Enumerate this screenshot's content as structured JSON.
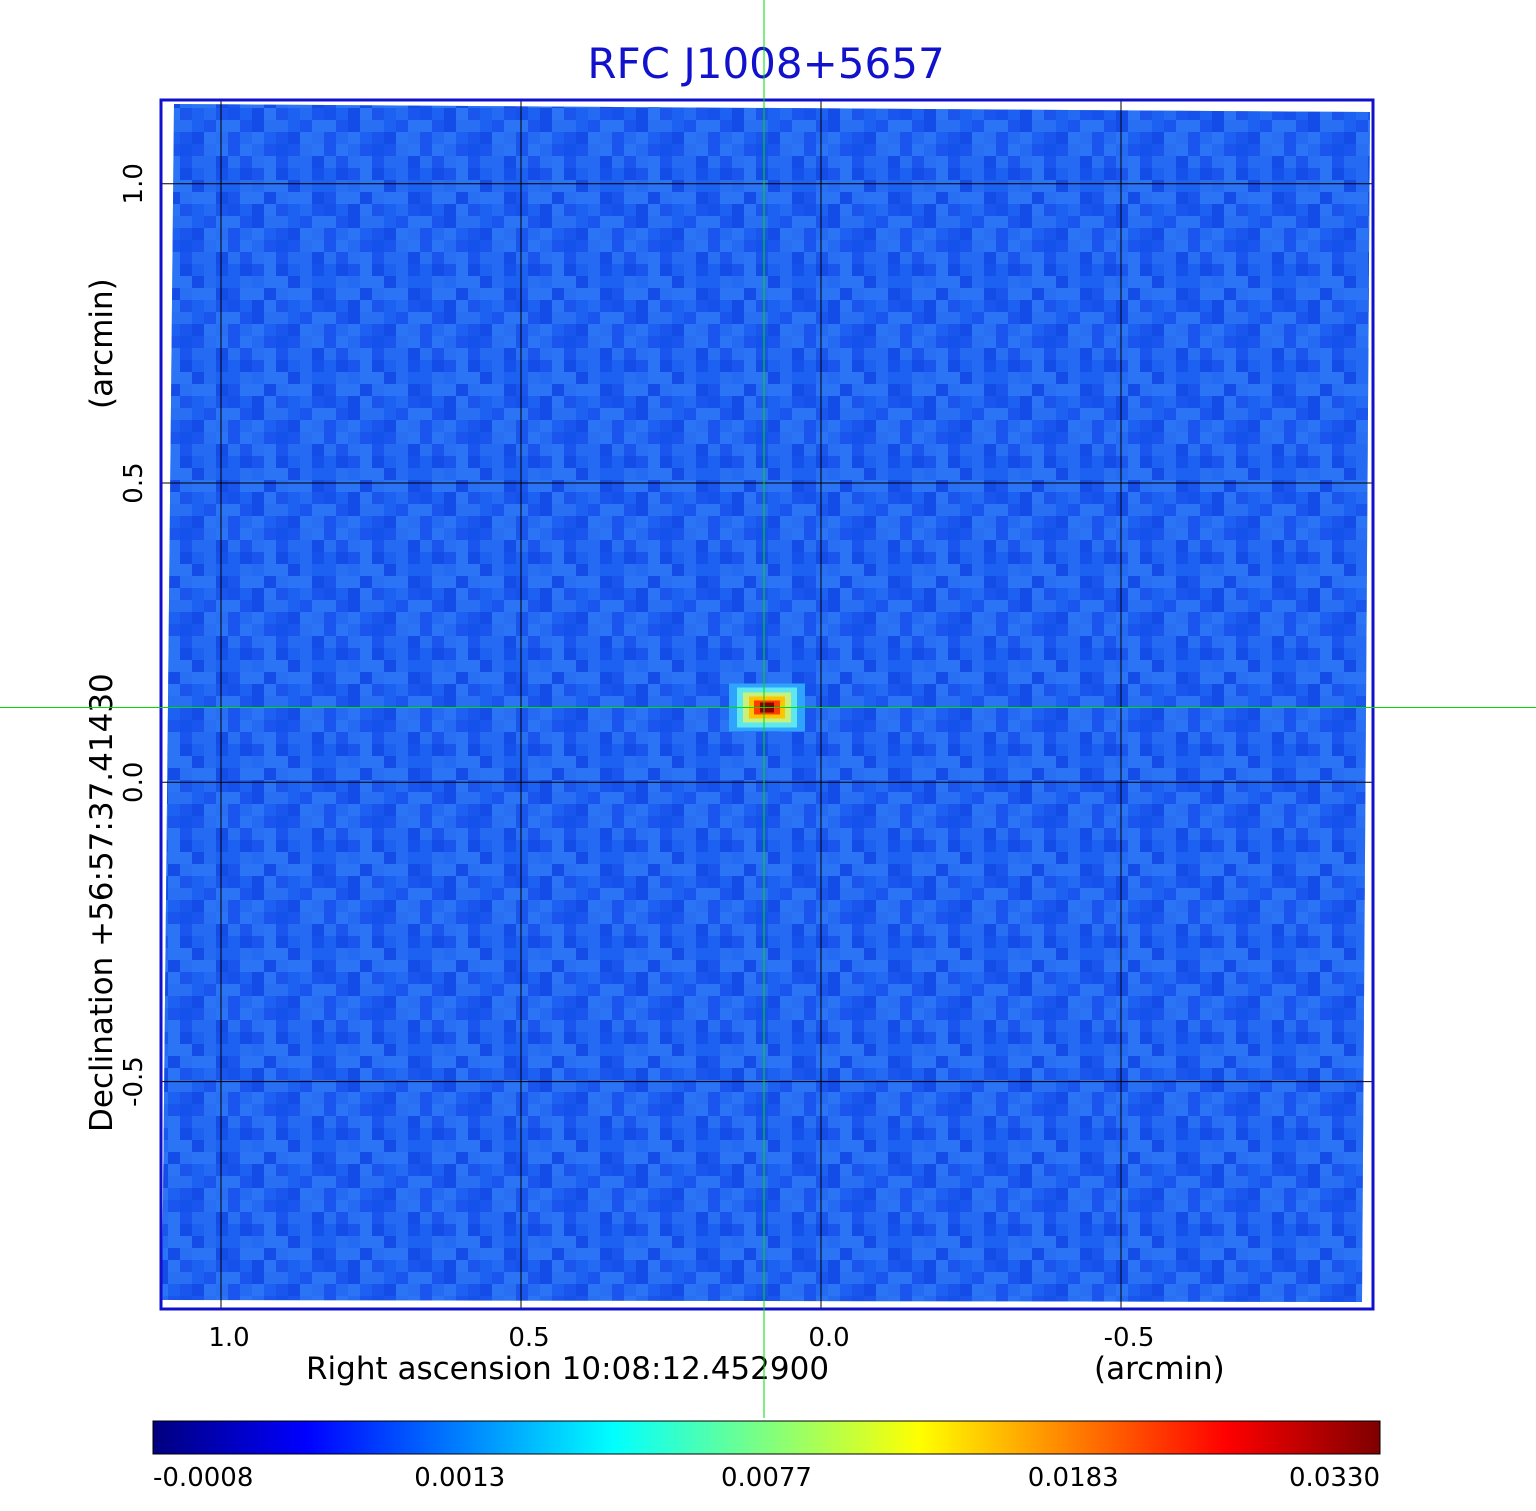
{
  "chart_data": {
    "type": "heatmap",
    "title": "RFC J1008+5657",
    "xlabel": "Right ascension  10:08:12.452900",
    "xunit": "(arcmin)",
    "ylabel": "Declination  +56:57:37.41430",
    "yunit": "(arcmin)",
    "xlim": [
      1.1,
      -0.92
    ],
    "ylim": [
      -0.88,
      1.14
    ],
    "xticks": [
      1.0,
      0.5,
      0.0,
      -0.5
    ],
    "xtick_labels": [
      "1.0",
      "0.5",
      "0.0",
      "-0.5"
    ],
    "yticks": [
      1.0,
      0.5,
      0.0,
      -0.5
    ],
    "ytick_labels": [
      "1.0",
      "0.5",
      "0.0",
      "-0.5"
    ],
    "grid": true,
    "source": {
      "x": 0.09,
      "y": 0.125,
      "peak": 0.033
    },
    "crosshair": {
      "x": 0.095,
      "y": 0.125
    },
    "colorbar": {
      "position": "bottom",
      "tick_values": [
        -0.0008,
        0.0013,
        0.0077,
        0.0183,
        0.033
      ],
      "tick_labels": [
        "-0.0008",
        "0.0013",
        "0.0077",
        "0.0183",
        "0.0330"
      ],
      "colormap": [
        "#00007f",
        "#0000ff",
        "#007fff",
        "#00ffff",
        "#7fff7f",
        "#ffff00",
        "#ff7f00",
        "#ff0000",
        "#7f0000"
      ]
    },
    "colors": {
      "frame": "#1111cc",
      "grid": "#000000",
      "crosshair": "#00dd00",
      "background": "#1e5cf0"
    }
  }
}
